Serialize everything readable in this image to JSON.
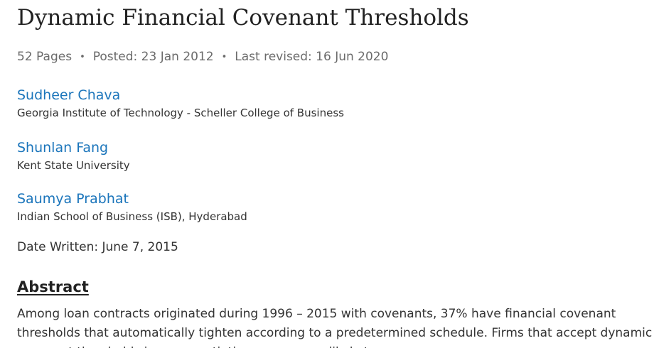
{
  "paper": {
    "title": "Dynamic Financial Covenant Thresholds",
    "meta": {
      "pages": "52 Pages",
      "posted": "Posted: 23 Jan 2012",
      "revised": "Last revised: 16 Jun 2020",
      "separator": "•"
    },
    "authors": [
      {
        "name": "Sudheer Chava",
        "affiliation": "Georgia Institute of Technology - Scheller College of Business"
      },
      {
        "name": "Shunlan Fang",
        "affiliation": "Kent State University"
      },
      {
        "name": "Saumya Prabhat",
        "affiliation": "Indian School of Business (ISB), Hyderabad"
      }
    ],
    "date_written": "Date Written: June 7, 2015",
    "abstract": {
      "heading": "Abstract",
      "text": "Among loan contracts originated during 1996 – 2015 with covenants, 37% have financial covenant thresholds that automatically tighten according to a predetermined schedule. Firms that accept dynamic covenant thresholds in a renegotiation ... are more likely to ..."
    }
  },
  "colors": {
    "link": "#1b75bb",
    "text": "#333333",
    "muted": "#6b6b6b"
  }
}
